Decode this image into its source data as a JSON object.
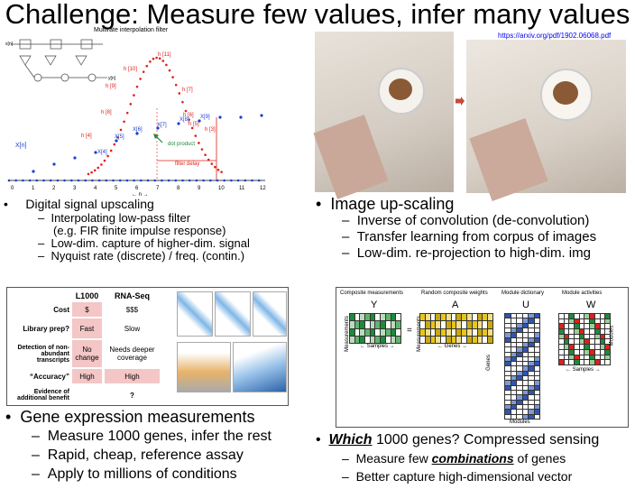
{
  "slide": {
    "title": "Challenge: Measure few values, infer many values",
    "link": "https://arxiv.org/pdf/1902.06068.pdf"
  },
  "filter_figure": {
    "title": "Multirate interpolation filter",
    "xn_label": "X[n]",
    "point_labels": [
      "h [11]",
      "h [10]",
      "h [9]",
      "h [8]",
      "h [7]",
      "h [6]",
      "h [5]",
      "h [4]",
      "h [3]",
      "X[7]",
      "X[8]",
      "X[9]",
      "X[6]",
      "X[5]",
      "X[4]"
    ],
    "dot_product": "dot product",
    "filter_delay": "filter delay",
    "axis_ticks": [
      "0",
      "1",
      "2",
      "3",
      "4",
      "5",
      "6",
      "7",
      "8",
      "9",
      "10",
      "11",
      "12"
    ],
    "axis_n": "← n →"
  },
  "top_left_bullets": {
    "main": "Digital signal upscaling",
    "subs": [
      "Interpolating low-pass filter",
      "(e.g. FIR finite impulse response)",
      "Low-dim. capture of higher-dim. signal",
      "Nyquist rate (discrete) / freq. (contin.)"
    ]
  },
  "top_right_bullets": {
    "main": "Image up-scaling",
    "subs": [
      "Inverse of convolution (de-convolution)",
      "Transfer learning from corpus of images",
      "Low-dim. re-projection to high-dim. img"
    ]
  },
  "gene_table": {
    "headers": [
      "L1000",
      "RNA-Seq"
    ],
    "rows": [
      {
        "label": "Cost",
        "a": "$",
        "b": "$$$"
      },
      {
        "label": "Library prep?",
        "a": "Fast",
        "b": "Slow"
      },
      {
        "label": "Detection of non-abundant transcripts",
        "a": "No change",
        "b": "Needs deeper coverage"
      },
      {
        "label": "“Accuracy”",
        "a": "High",
        "b": "High"
      },
      {
        "label": "Evidence of additional benefit",
        "a": "",
        "b": "?"
      }
    ]
  },
  "bottom_left_bullets": {
    "main": "Gene expression measurements",
    "subs": [
      "Measure 1000 genes, infer the rest",
      "Rapid, cheap, reference assay",
      "Apply to millions of conditions"
    ]
  },
  "matrix_figure": {
    "headers": [
      "Composite measurements",
      "Random composite weights",
      "Module dictionary",
      "Module activities"
    ],
    "letters": [
      "Y",
      "A",
      "U",
      "W"
    ],
    "measurements": "Measurements",
    "samples": "Samples",
    "genes": "Genes",
    "modules": "Modules"
  },
  "bottom_right_bullets": {
    "main_em": "Which",
    "main_rest": " 1000 genes? Compressed sensing",
    "sub1_pre": "Measure few ",
    "sub1_em": "combinations",
    "sub1_post": " of genes",
    "sub2": "Better capture high-dimensional vector"
  },
  "colors": {
    "red_points": "#e0201a",
    "blue_points": "#1a3fd0",
    "green_cells": "#1e8a3a",
    "yellow_cells": "#e6c619",
    "blue_cells": "#3054b0",
    "table_pink": "#f4c6c6"
  }
}
